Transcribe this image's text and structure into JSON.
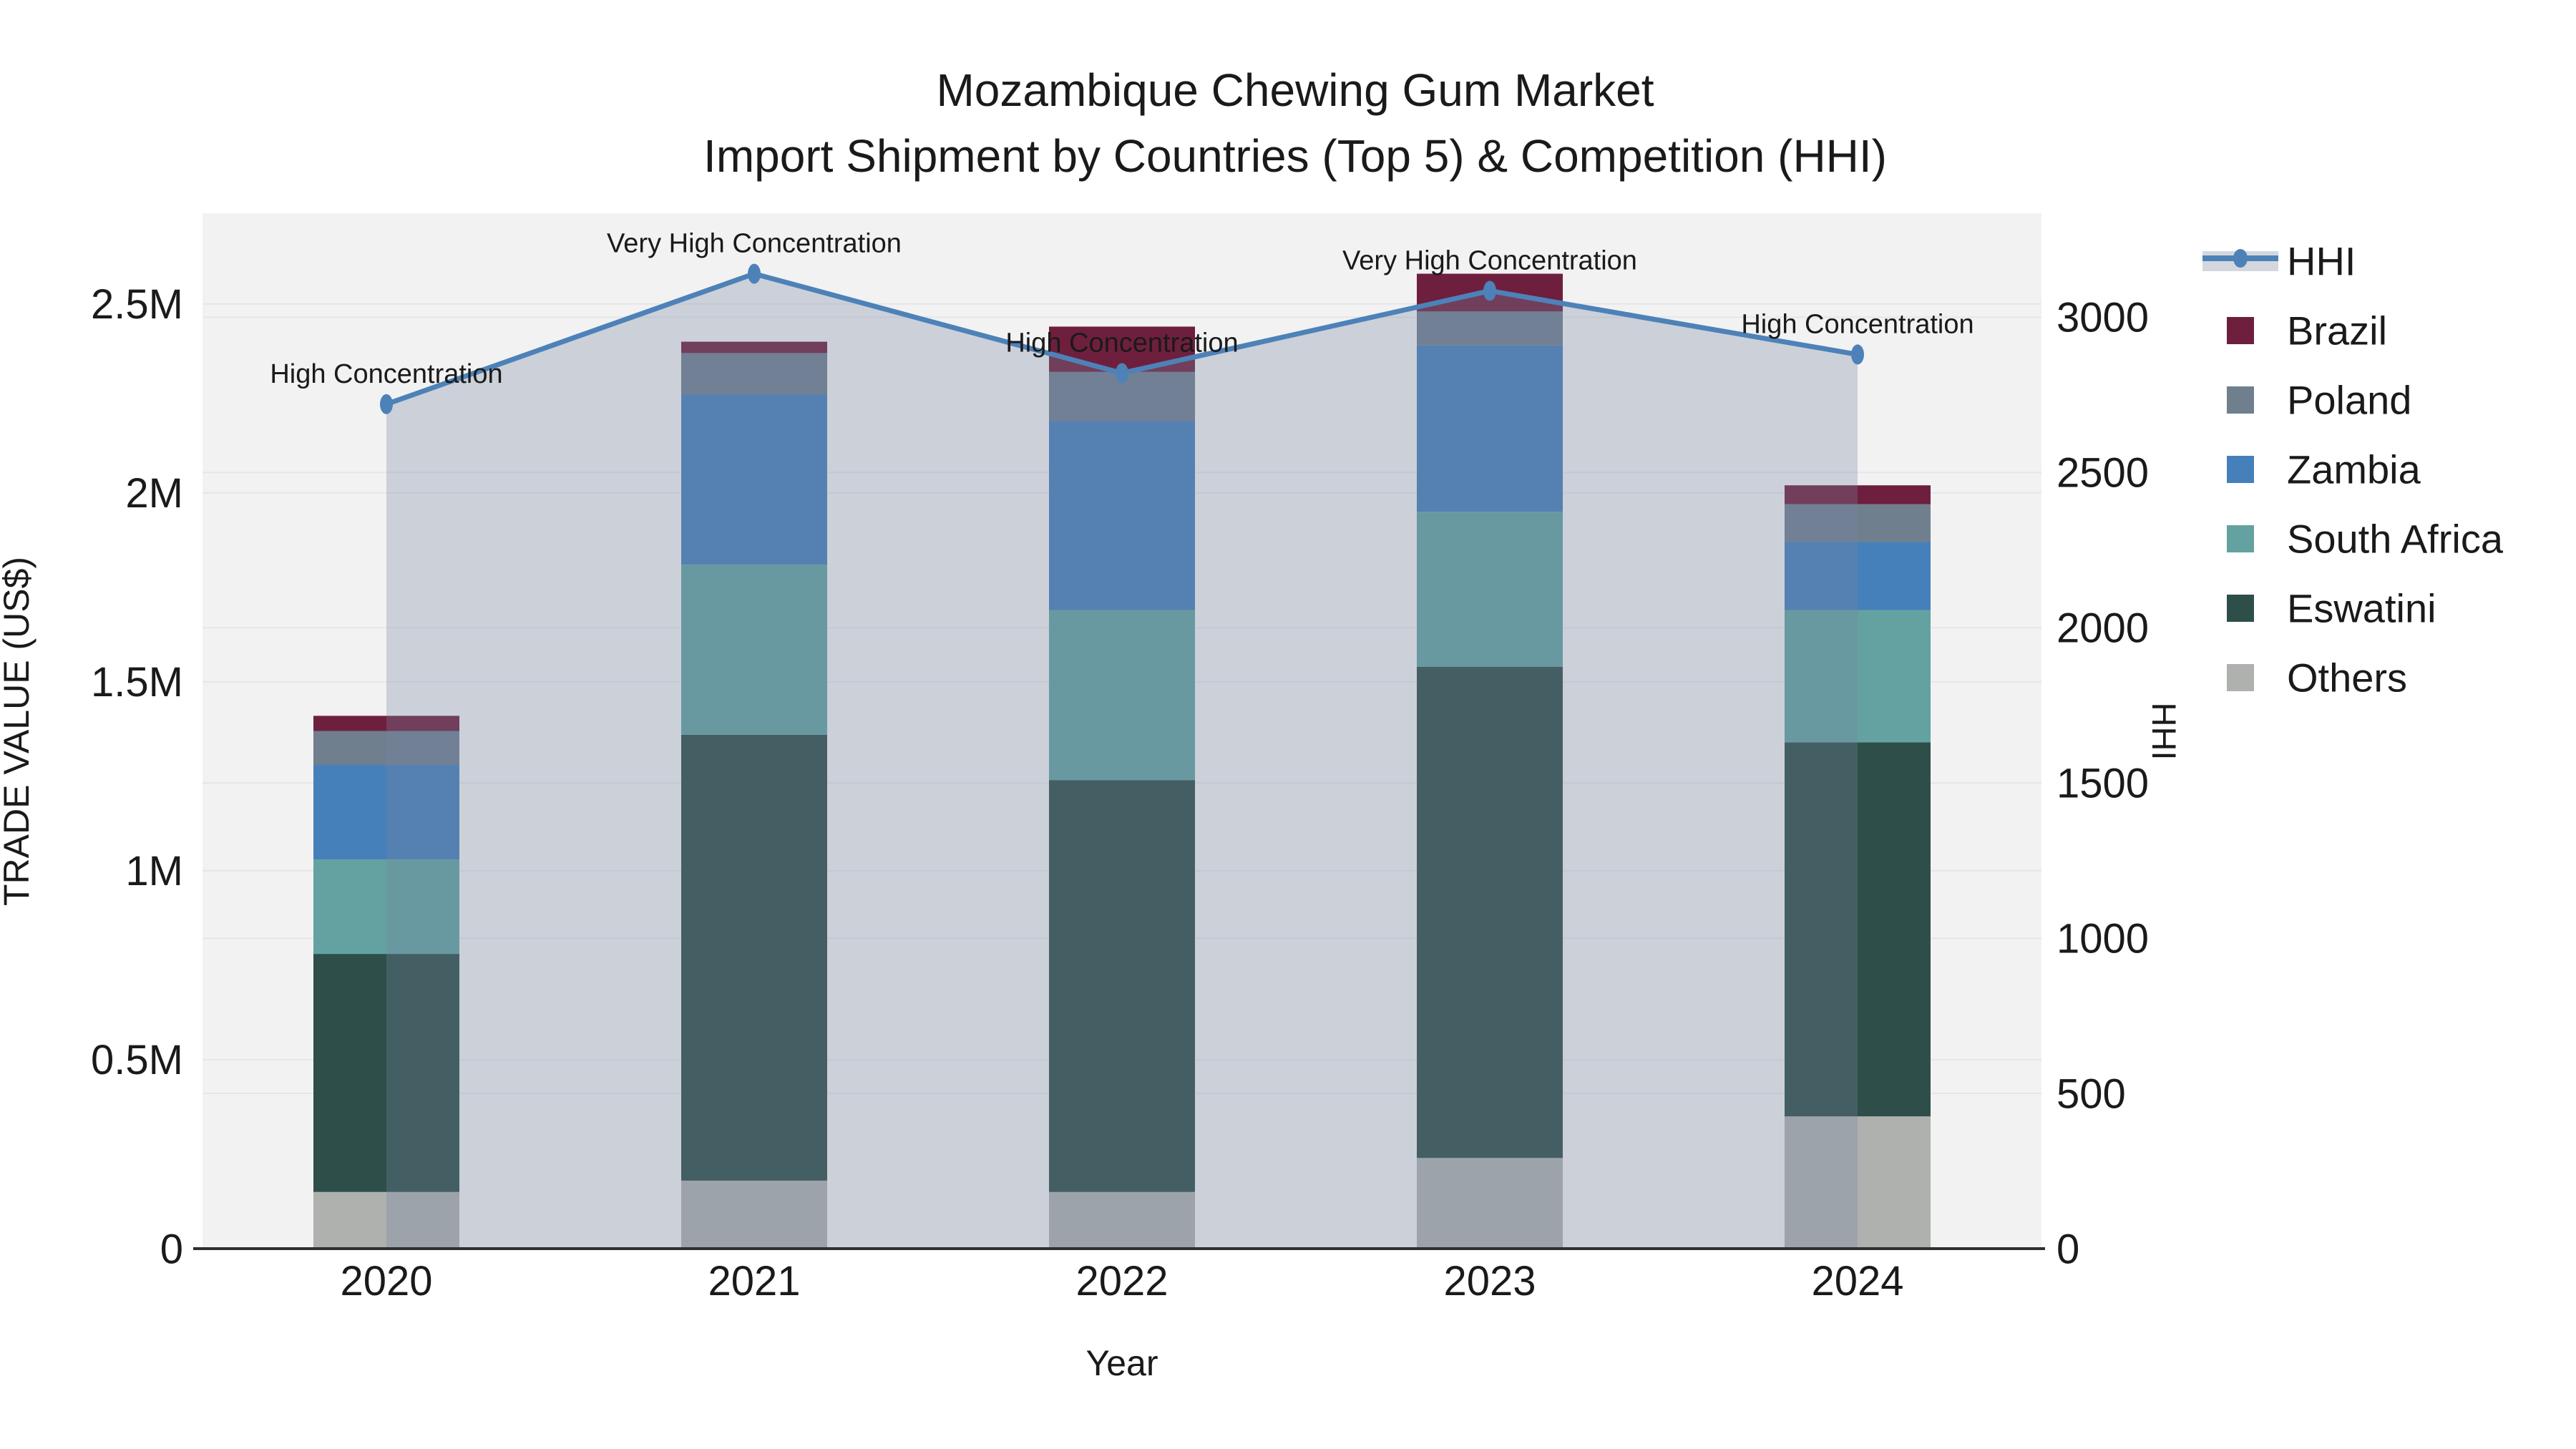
{
  "chart_data": {
    "type": "combo-stacked-bar-line",
    "title": "Mozambique Chewing Gum Market",
    "subtitle": "Import Shipment by Countries (Top 5) & Competition (HHI)",
    "x_axis": {
      "label": "Year",
      "categories": [
        "2020",
        "2021",
        "2022",
        "2023",
        "2024"
      ]
    },
    "left_axis": {
      "label": "TRADE VALUE (US$)",
      "tick_labels": [
        "0",
        "0.5M",
        "1M",
        "1.5M",
        "2M",
        "2.5M"
      ],
      "tick_values": [
        0,
        500000,
        1000000,
        1500000,
        2000000,
        2500000
      ],
      "range": [
        0,
        2740000
      ]
    },
    "right_axis": {
      "label": "HHI",
      "tick_labels": [
        "0",
        "500",
        "1000",
        "1500",
        "2000",
        "2500",
        "3000"
      ],
      "tick_values": [
        0,
        500,
        1000,
        1500,
        2000,
        2500,
        3000
      ],
      "range": [
        0,
        3335
      ]
    },
    "bar_series_stack_bottom_to_top": [
      {
        "name": "Others",
        "color": "#aeb1ae",
        "values": [
          150000,
          180000,
          150000,
          240000,
          350000
        ]
      },
      {
        "name": "Eswatini",
        "color": "#2e4f49",
        "values": [
          630000,
          1180000,
          1090000,
          1300000,
          990000
        ]
      },
      {
        "name": "South Africa",
        "color": "#63a2a0",
        "values": [
          250000,
          450000,
          450000,
          410000,
          350000
        ]
      },
      {
        "name": "Zambia",
        "color": "#4580ba",
        "values": [
          250000,
          450000,
          500000,
          440000,
          180000
        ]
      },
      {
        "name": "Poland",
        "color": "#6f7f8e",
        "values": [
          90000,
          110000,
          130000,
          90000,
          100000
        ]
      },
      {
        "name": "Brazil",
        "color": "#6e1f3e",
        "values": [
          40000,
          30000,
          120000,
          100000,
          50000
        ]
      }
    ],
    "line_series": {
      "name": "HHI",
      "color": "#4d82b8",
      "area_fill": "rgba(119,132,162,0.31)",
      "values": [
        2720,
        3140,
        2820,
        3085,
        2880
      ]
    },
    "annotations": [
      {
        "year": "2020",
        "label": "High Concentration"
      },
      {
        "year": "2021",
        "label": "Very High Concentration"
      },
      {
        "year": "2022",
        "label": "High Concentration"
      },
      {
        "year": "2023",
        "label": "Very High Concentration"
      },
      {
        "year": "2024",
        "label": "High Concentration"
      }
    ],
    "legend_order": [
      "HHI",
      "Brazil",
      "Poland",
      "Zambia",
      "South Africa",
      "Eswatini",
      "Others"
    ],
    "colors": {
      "plot_background": "#f2f2f2",
      "gridline": "#e6e6e9",
      "axis_line": "#2f2f2f",
      "text": "#1a1a1a"
    }
  }
}
